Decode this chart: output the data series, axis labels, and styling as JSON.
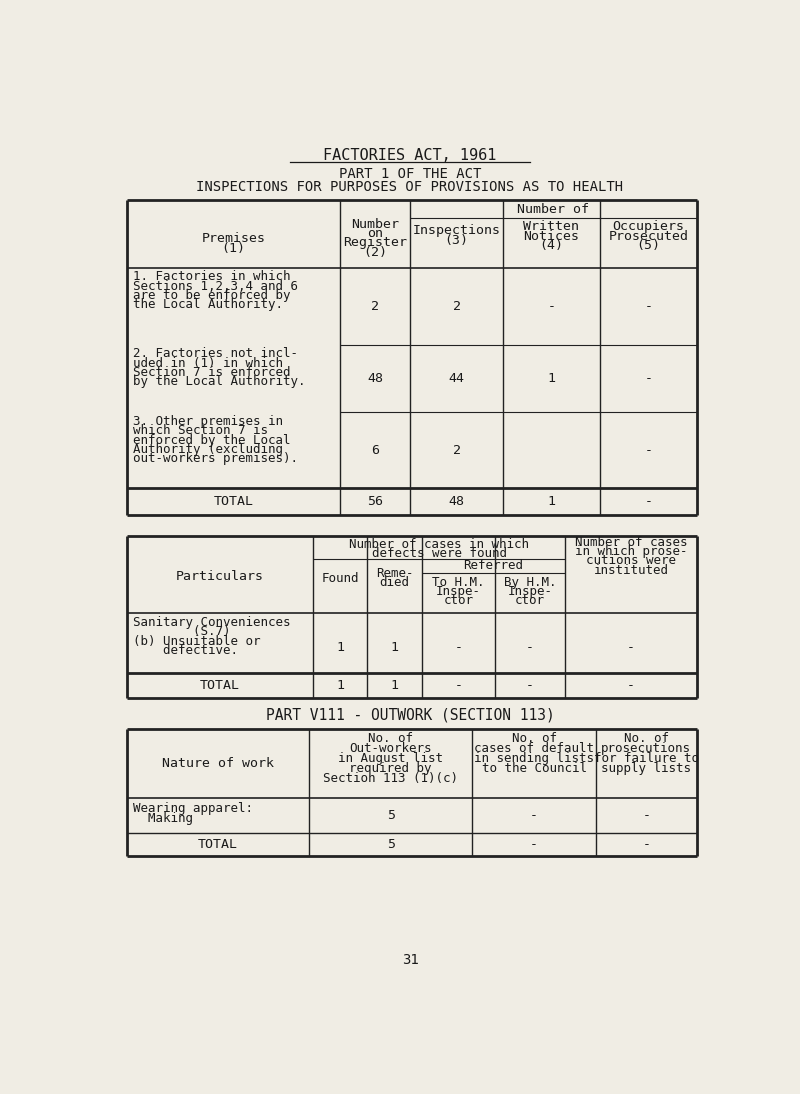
{
  "bg_color": "#f0ede4",
  "text_color": "#1a1a1a",
  "title1": "FACTORIES ACT, 1961",
  "title2": "PART 1 OF THE ACT",
  "title3": "INSPECTIONS FOR PURPOSES OF PROVISIONS AS TO HEALTH",
  "font_family": "DejaVu Sans Mono",
  "part8_title": "PART V111 - OUTWORK (SECTION 113)",
  "page_number": "31",
  "lm": 35,
  "rm": 770
}
